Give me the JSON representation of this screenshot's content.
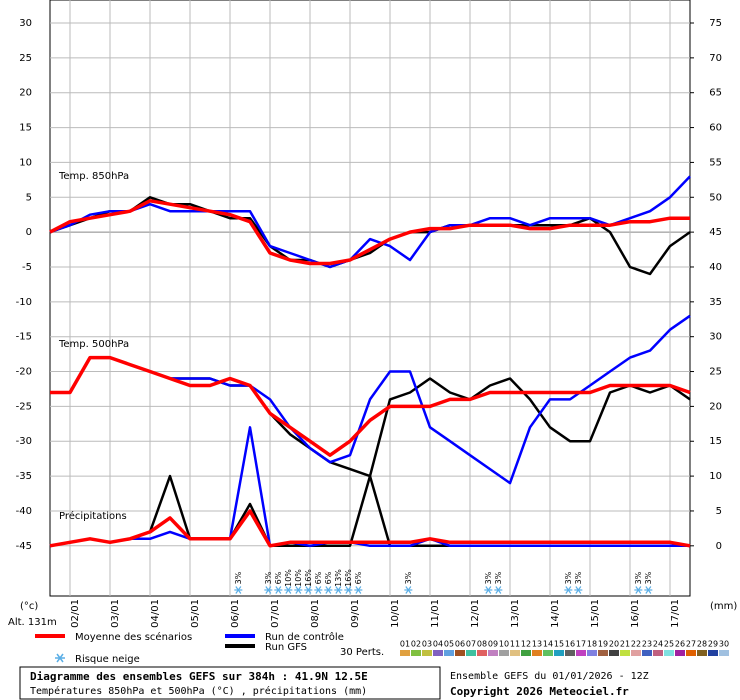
{
  "chart_data": {
    "type": "line",
    "title": "Diagramme des ensembles GEFS sur 384h : 41.9N 12.5E",
    "subtitle": "Températures 850hPa et 500hPa (°C) , précipitations (mm)",
    "run_label": "Ensemble GEFS du 01/01/2026 - 12Z",
    "copyright": "Copyright 2026 Meteociel.fr",
    "altitude": "Alt. 131m",
    "y_label": "(°c)",
    "y2_label": "(mm)",
    "panels": {
      "t850": "Temp. 850hPa",
      "t500": "Temp. 500hPa",
      "precip": "Précipitations"
    },
    "x": [
      0,
      12,
      24,
      36,
      48,
      60,
      72,
      84,
      96,
      108,
      120,
      132,
      144,
      156,
      168,
      180,
      192,
      204,
      216,
      228,
      240,
      252,
      264,
      276,
      288,
      300,
      312,
      324,
      336,
      348,
      360,
      372,
      384
    ],
    "xlim": [
      0,
      384
    ],
    "xticks": [
      {
        "value": 12,
        "label": "02/01"
      },
      {
        "value": 36,
        "label": "03/01"
      },
      {
        "value": 60,
        "label": "04/01"
      },
      {
        "value": 84,
        "label": "05/01"
      },
      {
        "value": 108,
        "label": "06/01"
      },
      {
        "value": 132,
        "label": "07/01"
      },
      {
        "value": 156,
        "label": "08/01"
      },
      {
        "value": 180,
        "label": "09/01"
      },
      {
        "value": 204,
        "label": "10/01"
      },
      {
        "value": 228,
        "label": "11/01"
      },
      {
        "value": 252,
        "label": "12/01"
      },
      {
        "value": 276,
        "label": "13/01"
      },
      {
        "value": 300,
        "label": "14/01"
      },
      {
        "value": 324,
        "label": "15/01"
      },
      {
        "value": 348,
        "label": "16/01"
      },
      {
        "value": 372,
        "label": "17/01"
      }
    ],
    "ylim": [
      -52.2,
      33.3
    ],
    "yticks": [
      30,
      25,
      20,
      15,
      10,
      5,
      0,
      -5,
      -10,
      -15,
      -20,
      -25,
      -30,
      -35,
      -40,
      -45
    ],
    "y2lim": [
      -7.2,
      78.3
    ],
    "y2ticks": [
      75,
      70,
      65,
      60,
      55,
      50,
      45,
      40,
      35,
      30,
      25,
      20,
      15,
      10,
      5,
      0
    ],
    "grid": true,
    "series": [
      {
        "name": "Moyenne des scénarios",
        "color": "#ff0000",
        "t850": [
          0,
          1.5,
          2,
          2.5,
          3,
          4.5,
          4,
          3.5,
          3,
          2.5,
          1.5,
          -3,
          -4,
          -4.5,
          -4.5,
          -4,
          -2.5,
          -1,
          0,
          0.5,
          0.5,
          1,
          1,
          1,
          0.5,
          0.5,
          1,
          1,
          1,
          1.5,
          1.5,
          2,
          2
        ],
        "t500": [
          -23,
          -23,
          -18,
          -18,
          -19,
          -20,
          -21,
          -22,
          -22,
          -21,
          -22,
          -26,
          -28,
          -30,
          -32,
          -30,
          -27,
          -25,
          -25,
          -25,
          -24,
          -24,
          -23,
          -23,
          -23,
          -23,
          -23,
          -23,
          -22,
          -22,
          -22,
          -22,
          -23
        ],
        "precip": [
          0,
          0.5,
          1,
          0.5,
          1,
          2,
          4,
          1,
          1,
          1,
          5,
          0,
          0.5,
          0.5,
          0.5,
          0.5,
          0.5,
          0.5,
          0.5,
          1,
          0.5,
          0.5,
          0.5,
          0.5,
          0.5,
          0.5,
          0.5,
          0.5,
          0.5,
          0.5,
          0.5,
          0.5,
          0
        ]
      },
      {
        "name": "Run de contrôle",
        "color": "#0000ff",
        "t850": [
          0,
          1,
          2.5,
          3,
          3,
          4,
          3,
          3,
          3,
          3,
          3,
          -2,
          -3,
          -4,
          -5,
          -4,
          -1,
          -2,
          -4,
          0,
          1,
          1,
          2,
          2,
          1,
          2,
          2,
          2,
          1,
          2,
          3,
          5,
          8
        ],
        "t500": [
          -23,
          -23,
          -18,
          -18,
          -19,
          -20,
          -21,
          -21,
          -21,
          -22,
          -22,
          -24,
          -28,
          -31,
          -33,
          -32,
          -24,
          -20,
          -20,
          -28,
          -30,
          -32,
          -34,
          -36,
          -28,
          -24,
          -24,
          -22,
          -20,
          -18,
          -17,
          -14,
          -12
        ],
        "precip": [
          0,
          0.5,
          1,
          0.5,
          1,
          1,
          2,
          1,
          1,
          1,
          17,
          0,
          0.5,
          0,
          0.5,
          0.5,
          0,
          0,
          0,
          1,
          0,
          0,
          0,
          0,
          0,
          0,
          0,
          0,
          0,
          0,
          0,
          0,
          0
        ]
      },
      {
        "name": "Run GFS",
        "color": "#000000",
        "t850": [
          0,
          1,
          2,
          3,
          3,
          5,
          4,
          4,
          3,
          2,
          2,
          -2,
          -4,
          -4,
          -5,
          -4,
          -3,
          -1,
          0,
          0,
          1,
          1,
          1,
          1,
          1,
          1,
          1,
          2,
          0,
          -5,
          -6,
          -2,
          0
        ],
        "t500": [
          -23,
          -23,
          -18,
          -18,
          -19,
          -20,
          -21,
          -21,
          -21,
          -22,
          -22,
          -26,
          -29,
          -31,
          -33,
          -34,
          -35,
          -24,
          -23,
          -21,
          -23,
          -24,
          -22,
          -21,
          -24,
          -28,
          -30,
          -30,
          -23,
          -22,
          -23,
          -22,
          -24
        ],
        "precip": [
          0,
          0.5,
          1,
          0.5,
          1,
          2,
          10,
          1,
          1,
          1,
          6,
          0,
          0,
          0,
          0,
          0,
          10,
          0,
          0,
          0,
          0,
          0,
          0,
          0,
          0,
          0,
          0,
          0,
          0,
          0,
          0,
          0,
          0
        ]
      }
    ],
    "snow_risk": {
      "label": "Risque neige",
      "color": "#5aaee6",
      "points": [
        {
          "x": 113,
          "value": 3,
          "label": "3%"
        },
        {
          "x": 131,
          "value": 3,
          "label": "3%"
        },
        {
          "x": 137,
          "value": 6,
          "label": "6%"
        },
        {
          "x": 143,
          "value": 10,
          "label": "10%"
        },
        {
          "x": 149,
          "value": 10,
          "label": "10%"
        },
        {
          "x": 155,
          "value": 16,
          "label": "16%"
        },
        {
          "x": 161,
          "value": 6,
          "label": "6%"
        },
        {
          "x": 167,
          "value": 6,
          "label": "6%"
        },
        {
          "x": 173,
          "value": 13,
          "label": "13%"
        },
        {
          "x": 179,
          "value": 16,
          "label": "16%"
        },
        {
          "x": 185,
          "value": 6,
          "label": "6%"
        },
        {
          "x": 215,
          "value": 3,
          "label": "3%"
        },
        {
          "x": 263,
          "value": 3,
          "label": "3%"
        },
        {
          "x": 269,
          "value": 3,
          "label": "3%"
        },
        {
          "x": 311,
          "value": 3,
          "label": "3%"
        },
        {
          "x": 317,
          "value": 3,
          "label": "3%"
        },
        {
          "x": 353,
          "value": 3,
          "label": "3%"
        },
        {
          "x": 359,
          "value": 3,
          "label": "3%"
        }
      ]
    },
    "perturbations": {
      "label": "30 Perts.",
      "members": [
        {
          "label": "01",
          "color": "#e0a040"
        },
        {
          "label": "02",
          "color": "#80c040"
        },
        {
          "label": "03",
          "color": "#c0c040"
        },
        {
          "label": "04",
          "color": "#8060c0"
        },
        {
          "label": "05",
          "color": "#60a0e0"
        },
        {
          "label": "06",
          "color": "#a05020"
        },
        {
          "label": "07",
          "color": "#40c0a0"
        },
        {
          "label": "08",
          "color": "#e06060"
        },
        {
          "label": "09",
          "color": "#c080c0"
        },
        {
          "label": "10",
          "color": "#a0a0a0"
        },
        {
          "label": "11",
          "color": "#e0c080"
        },
        {
          "label": "12",
          "color": "#40a040"
        },
        {
          "label": "13",
          "color": "#e08020"
        },
        {
          "label": "14",
          "color": "#60c060"
        },
        {
          "label": "15",
          "color": "#20a0c0"
        },
        {
          "label": "16",
          "color": "#606060"
        },
        {
          "label": "17",
          "color": "#c040c0"
        },
        {
          "label": "18",
          "color": "#8080e0"
        },
        {
          "label": "19",
          "color": "#a06040"
        },
        {
          "label": "20",
          "color": "#404040"
        },
        {
          "label": "21",
          "color": "#c0e040"
        },
        {
          "label": "22",
          "color": "#e0a0a0"
        },
        {
          "label": "23",
          "color": "#4060c0"
        },
        {
          "label": "24",
          "color": "#c06080"
        },
        {
          "label": "25",
          "color": "#80e0e0"
        },
        {
          "label": "26",
          "color": "#a020a0"
        },
        {
          "label": "27",
          "color": "#e06000"
        },
        {
          "label": "28",
          "color": "#806020"
        },
        {
          "label": "29",
          "color": "#2040a0"
        },
        {
          "label": "30",
          "color": "#a0c0e0"
        }
      ]
    }
  }
}
